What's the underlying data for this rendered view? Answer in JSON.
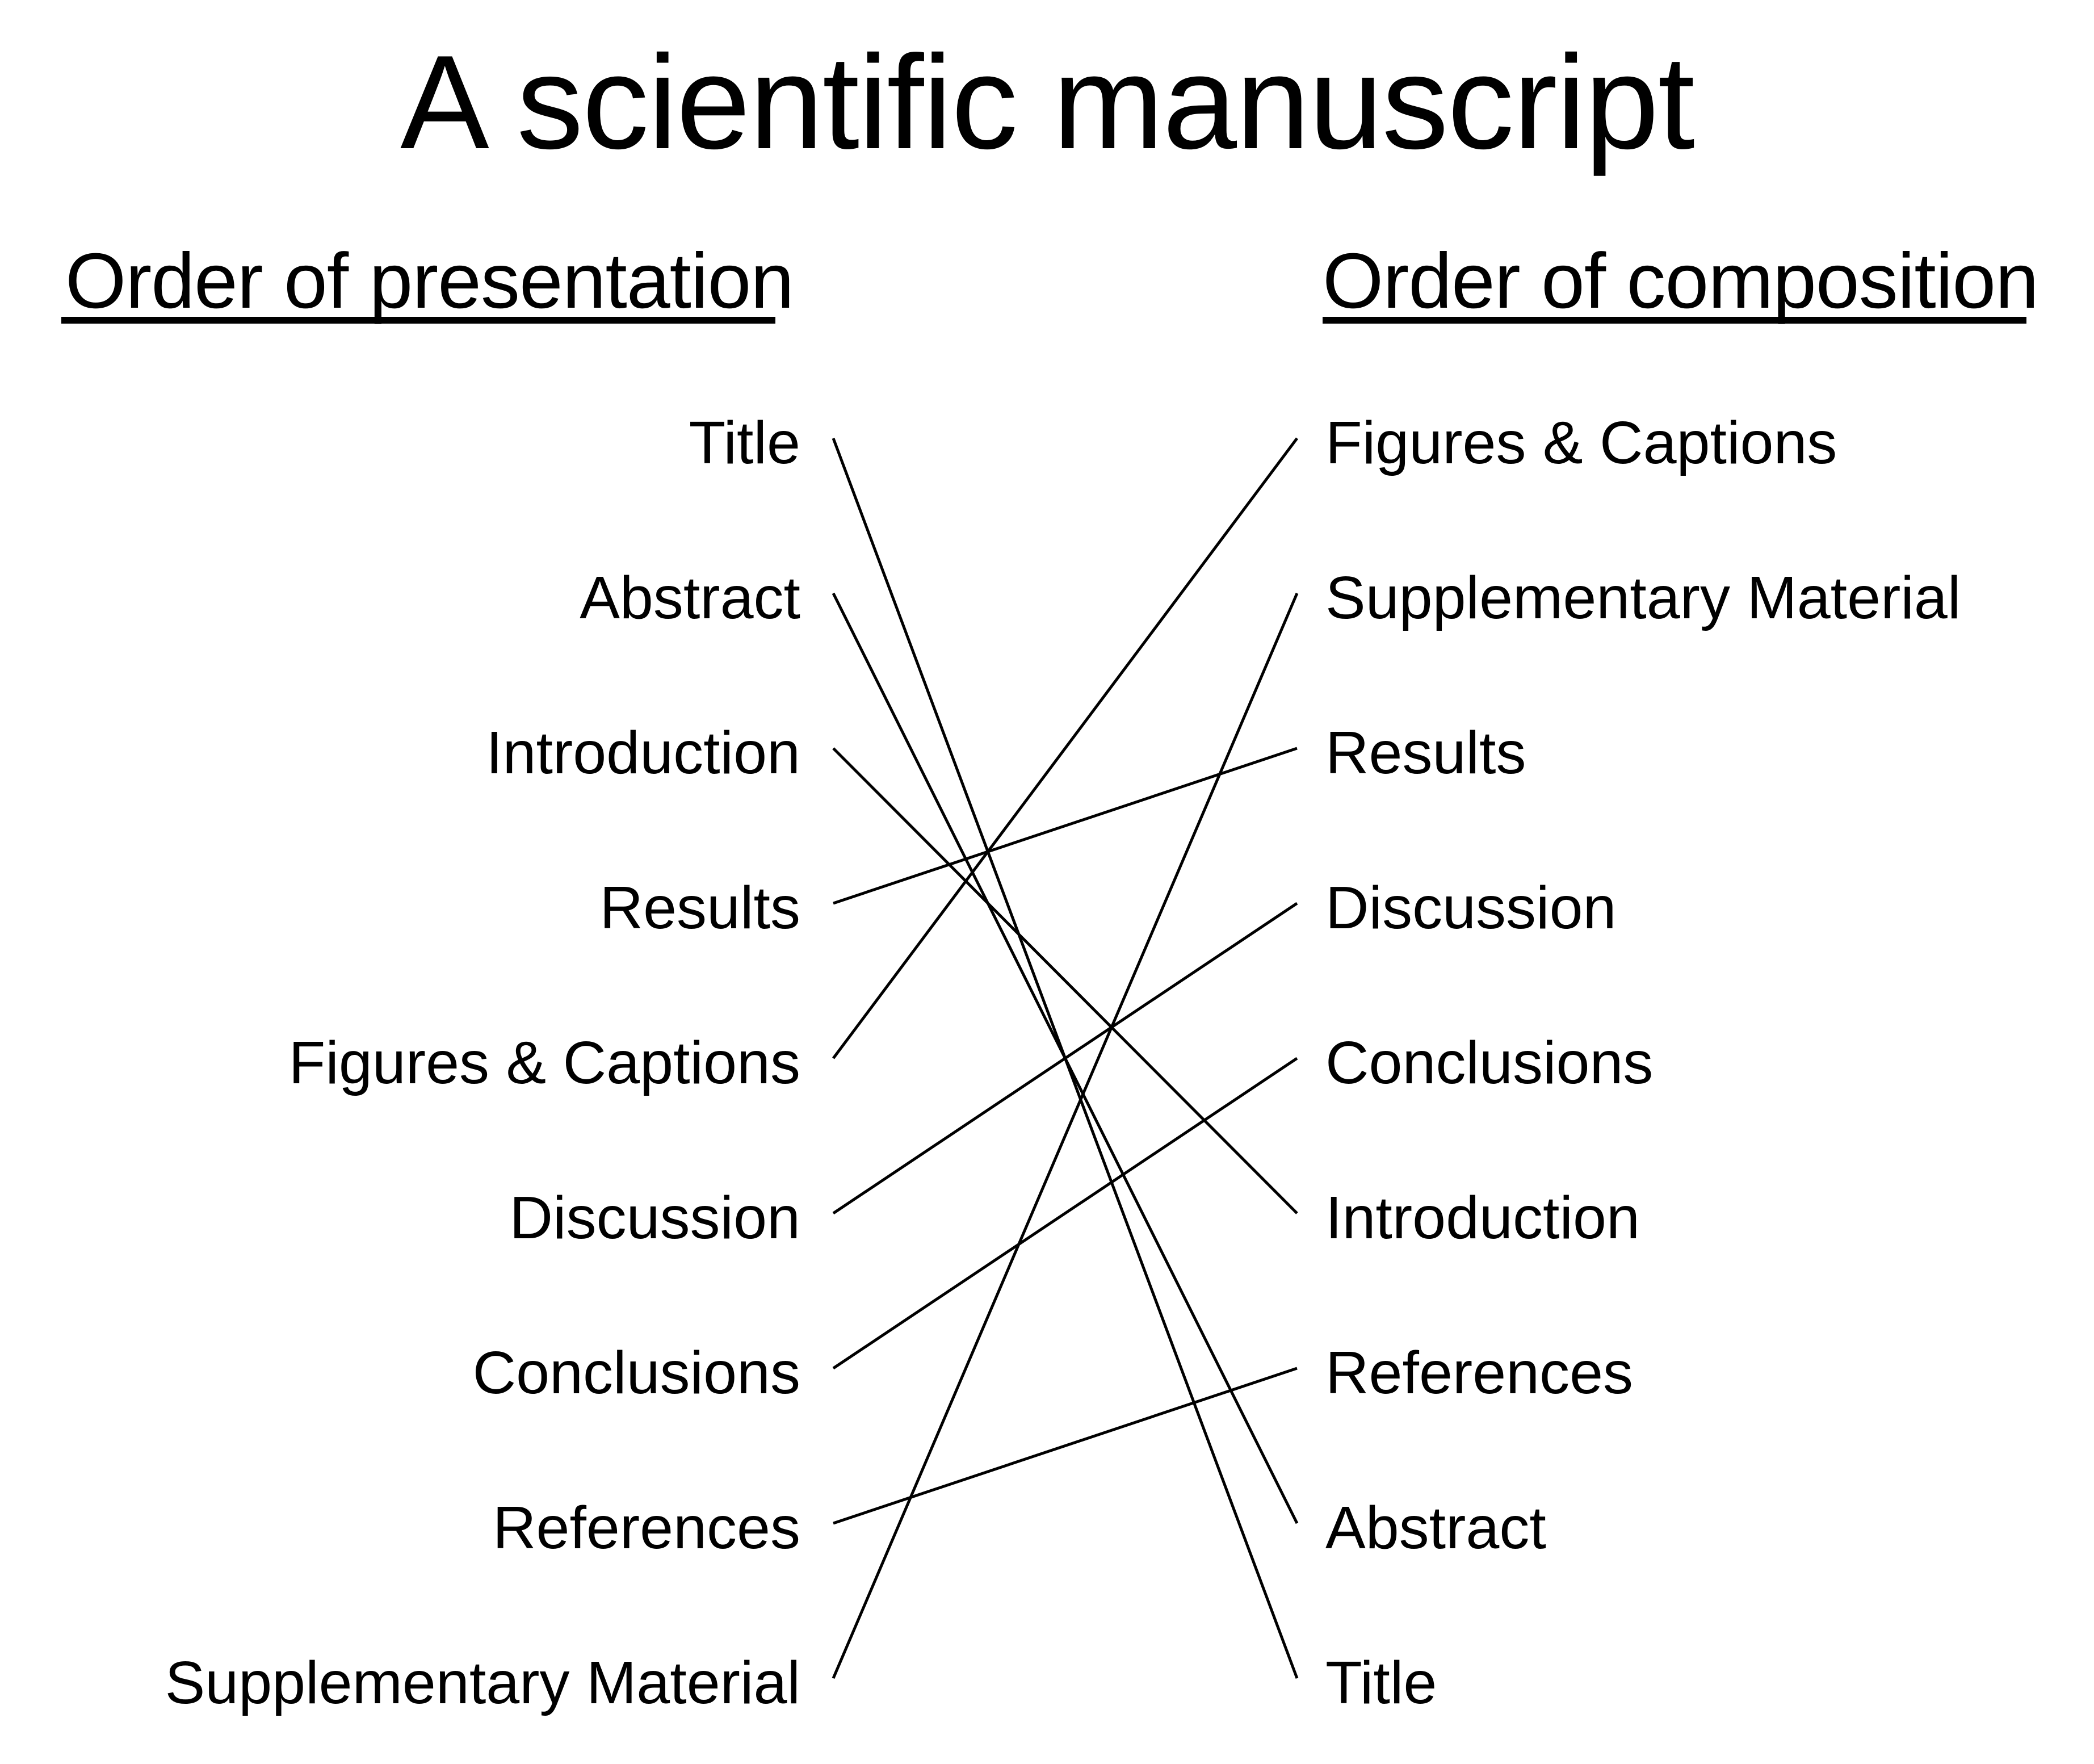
{
  "title": "A scientific manuscript",
  "left_column": {
    "header": "Order of presentation",
    "items": [
      "Title",
      "Abstract",
      "Introduction",
      "Results",
      "Figures & Captions",
      "Discussion",
      "Conclusions",
      "References",
      "Supplementary Material"
    ]
  },
  "right_column": {
    "header": "Order of composition",
    "items": [
      "Figures & Captions",
      "Supplementary Material",
      "Results",
      "Discussion",
      "Conclusions",
      "Introduction",
      "References",
      "Abstract",
      "Title"
    ]
  },
  "links": [
    {
      "from": 0,
      "to": 8
    },
    {
      "from": 1,
      "to": 7
    },
    {
      "from": 2,
      "to": 5
    },
    {
      "from": 3,
      "to": 2
    },
    {
      "from": 4,
      "to": 0
    },
    {
      "from": 5,
      "to": 3
    },
    {
      "from": 6,
      "to": 4
    },
    {
      "from": 7,
      "to": 6
    },
    {
      "from": 8,
      "to": 1
    }
  ]
}
